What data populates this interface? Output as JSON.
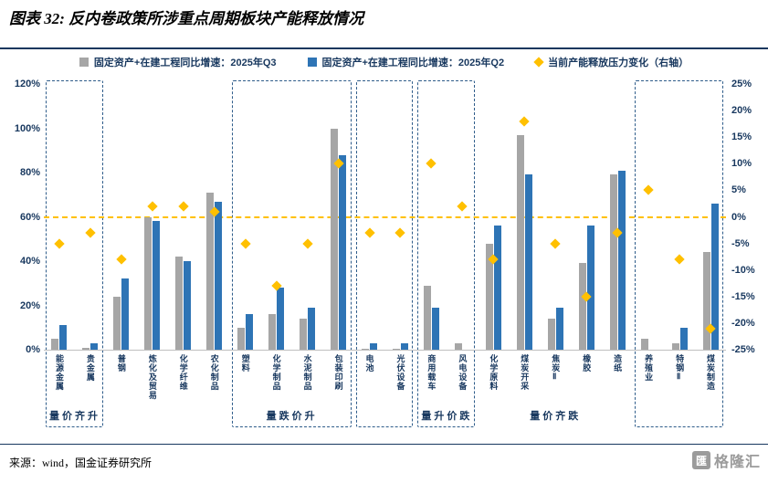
{
  "header": {
    "title": "图表 32: 反内卷政策所涉重点周期板块产能释放情况"
  },
  "footer": {
    "source": "来源：wind，国金证券研究所",
    "logo_text": "格隆汇",
    "logo_icon_char": "匯"
  },
  "colors": {
    "q3_bar": "#A6A6A6",
    "q2_bar": "#2E74B5",
    "pressure_marker": "#FFC000",
    "axis_text": "#17375E",
    "zero_line": "#FFC000",
    "box_border": "#2E5C8A"
  },
  "chart_data": {
    "type": "bar",
    "title": "反内卷政策所涉重点周期板块产能释放情况",
    "legend": [
      {
        "label": "固定资产+在建工程同比增速：2025年Q3",
        "color": "#A6A6A6",
        "marker": "square"
      },
      {
        "label": "固定资产+在建工程同比增速：2025年Q2",
        "color": "#2E74B5",
        "marker": "square"
      },
      {
        "label": "当前产能释放压力变化（右轴）",
        "color": "#FFC000",
        "marker": "diamond"
      }
    ],
    "categories": [
      "能源金属",
      "贵金属",
      "普钢",
      "炼化及贸易",
      "化学纤维",
      "农化制品",
      "塑料",
      "化学制品",
      "水泥制品",
      "包装印刷",
      "电池",
      "光伏设备",
      "商用载车",
      "风电设备",
      "化学原料",
      "煤炭开采",
      "焦炭Ⅱ",
      "橡胶",
      "造纸",
      "养殖业",
      "特钢Ⅱ",
      "煤炭制造"
    ],
    "series": [
      {
        "name": "固定资产+在建工程同比增速：2025年Q3",
        "axis": "left",
        "color": "#A6A6A6",
        "values": [
          5,
          1,
          24,
          60,
          42,
          71,
          10,
          16,
          14,
          100,
          0.5,
          0.5,
          29,
          3,
          48,
          97,
          14,
          39,
          79,
          5,
          3,
          44
        ]
      },
      {
        "name": "固定资产+在建工程同比增速：2025年Q2",
        "axis": "left",
        "color": "#2E74B5",
        "values": [
          11,
          3,
          32,
          58,
          40,
          67,
          16,
          28,
          19,
          88,
          3,
          3,
          19,
          0,
          56,
          79,
          19,
          56,
          81,
          0,
          10,
          66
        ]
      },
      {
        "name": "当前产能释放压力变化（右轴）",
        "axis": "right",
        "color": "#FFC000",
        "marker": "diamond",
        "values": [
          -5,
          -3,
          -8,
          2,
          2,
          1,
          -5,
          -13,
          -5,
          10,
          -3,
          -3,
          10,
          2,
          -8,
          18,
          -5,
          -15,
          -3,
          5,
          -8,
          -21
        ]
      }
    ],
    "left_axis": {
      "min": 0,
      "max": 120,
      "ticks": [
        "0%",
        "20%",
        "40%",
        "60%",
        "80%",
        "100%",
        "120%"
      ]
    },
    "right_axis": {
      "min": -25,
      "max": 25,
      "ticks": [
        "-25%",
        "-20%",
        "-15%",
        "-10%",
        "-5%",
        "0%",
        "5%",
        "10%",
        "15%",
        "20%",
        "25%"
      ]
    },
    "zero_line": {
      "axis": "right",
      "value": 0,
      "color": "#FFC000",
      "style": "dashed"
    },
    "grid": "off",
    "legend_position": "top",
    "group_boxes": [
      {
        "from": 0,
        "to": 1
      },
      {
        "from": 6,
        "to": 9
      },
      {
        "from": 10,
        "to": 11
      },
      {
        "from": 12,
        "to": 13
      },
      {
        "from": 19,
        "to": 21
      }
    ],
    "group_labels": [
      {
        "text": "量价齐升",
        "from": 0,
        "to": 1
      },
      {
        "text": "量跌价升",
        "from": 6,
        "to": 9
      },
      {
        "text": "量升价跌",
        "from": 12,
        "to": 13
      },
      {
        "text": "量价齐跌",
        "from": 14,
        "to": 18
      }
    ]
  }
}
